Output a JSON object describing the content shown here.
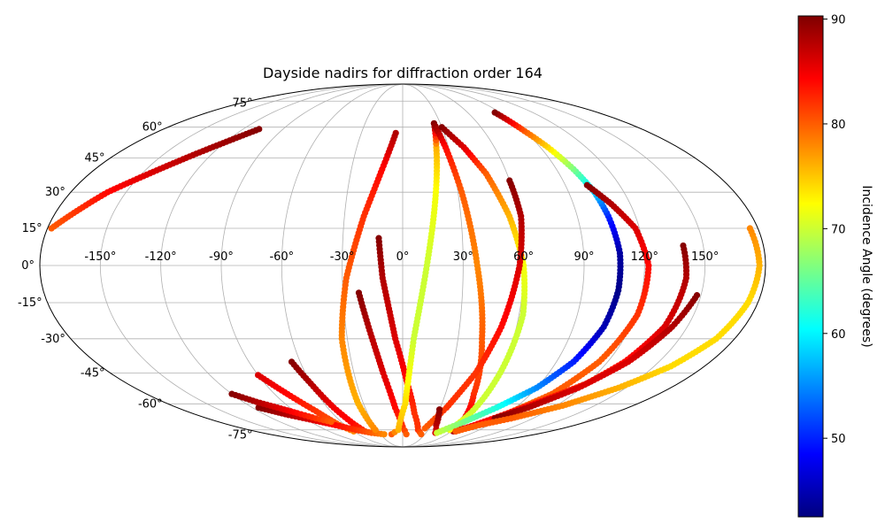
{
  "chart_data": {
    "type": "scatter",
    "projection": "mollweide",
    "title": "Dayside nadirs for diffraction order 164",
    "xlabel": "",
    "ylabel": "",
    "lon_ticks": [
      -150,
      -120,
      -90,
      -60,
      -30,
      0,
      30,
      60,
      90,
      120,
      150
    ],
    "lon_tick_labels": [
      "-150°",
      "-120°",
      "-90°",
      "-60°",
      "-30°",
      "0°",
      "30°",
      "60°",
      "90°",
      "120°",
      "150°"
    ],
    "lat_ticks": [
      -75,
      -60,
      -45,
      -30,
      -15,
      0,
      15,
      30,
      45,
      60,
      75
    ],
    "lat_tick_labels": [
      "-75°",
      "-60°",
      "-45°",
      "-30°",
      "-15°",
      "0°",
      "15°",
      "30°",
      "45°",
      "60°",
      "75°"
    ],
    "xlim": [
      -180,
      180
    ],
    "ylim": [
      -90,
      90
    ],
    "grid": true,
    "colorbar": {
      "label": "Incidence Angle (degrees)",
      "range": [
        42.5,
        90.3
      ],
      "ticks": [
        50,
        60,
        70,
        80,
        90
      ],
      "tick_labels": [
        "50",
        "60",
        "70",
        "80",
        "90"
      ],
      "colormap": "jet"
    },
    "series": [
      {
        "points": [
          [
            -178,
            15,
            80
          ],
          [
            -160,
            30,
            84
          ],
          [
            -130,
            47,
            88
          ],
          [
            -108,
            59,
            90
          ]
        ]
      },
      {
        "points": [
          [
            -90,
            -46,
            86
          ],
          [
            -80,
            -56,
            84
          ],
          [
            -72,
            -64,
            82
          ],
          [
            -66,
            -72,
            80
          ],
          [
            -60,
            -76,
            78
          ]
        ]
      },
      {
        "points": [
          [
            -65,
            -40,
            90
          ],
          [
            -60,
            -50,
            88
          ],
          [
            -55,
            -62,
            85
          ],
          [
            -50,
            -71,
            84
          ],
          [
            -46,
            -76,
            82
          ]
        ]
      },
      {
        "points": [
          [
            -115,
            -62,
            90
          ],
          [
            -100,
            -66,
            88
          ],
          [
            -85,
            -69,
            86
          ],
          [
            -70,
            -72,
            84
          ],
          [
            -55,
            -75,
            82
          ],
          [
            -40,
            -77,
            80
          ],
          [
            -25,
            -78,
            78
          ]
        ]
      },
      {
        "points": [
          [
            -120,
            -55,
            90
          ],
          [
            -110,
            -59,
            88
          ],
          [
            -100,
            -62,
            86
          ],
          [
            -90,
            -65,
            84
          ],
          [
            -80,
            -68,
            82
          ],
          [
            -70,
            -70,
            80
          ]
        ]
      },
      {
        "points": [
          [
            -32,
            -75,
            78
          ],
          [
            -34,
            -60,
            76
          ],
          [
            -33,
            -30,
            78
          ],
          [
            -28,
            -5,
            80
          ],
          [
            -20,
            20,
            82
          ],
          [
            -12,
            40,
            84
          ],
          [
            -5,
            57,
            88
          ]
        ]
      },
      {
        "points": [
          [
            -22,
            -11,
            90
          ],
          [
            -18,
            -25,
            88
          ],
          [
            -12,
            -45,
            86
          ],
          [
            -6,
            -62,
            84
          ],
          [
            0,
            -73,
            82
          ],
          [
            5,
            -78,
            80
          ]
        ]
      },
      {
        "points": [
          [
            -12,
            11,
            90
          ],
          [
            -10,
            -5,
            88
          ],
          [
            -4,
            -30,
            86
          ],
          [
            3,
            -50,
            84
          ],
          [
            10,
            -65,
            82
          ],
          [
            18,
            -75,
            82
          ],
          [
            25,
            -78,
            80
          ]
        ]
      },
      {
        "points": [
          [
            -15,
            -78,
            80
          ],
          [
            -5,
            -75,
            76
          ],
          [
            2,
            -60,
            74
          ],
          [
            6,
            -30,
            70
          ],
          [
            12,
            0,
            70
          ],
          [
            18,
            30,
            72
          ],
          [
            22,
            50,
            76
          ],
          [
            25,
            62,
            90
          ]
        ]
      },
      {
        "points": [
          [
            25,
            62,
            90
          ],
          [
            28,
            50,
            84
          ],
          [
            32,
            30,
            80
          ],
          [
            37,
            0,
            78
          ],
          [
            43,
            -30,
            80
          ],
          [
            50,
            -55,
            82
          ],
          [
            58,
            -70,
            86
          ],
          [
            62,
            -76,
            88
          ]
        ]
      },
      {
        "points": [
          [
            30,
            60,
            90
          ],
          [
            40,
            50,
            86
          ],
          [
            48,
            38,
            80
          ],
          [
            55,
            20,
            76
          ],
          [
            60,
            0,
            72
          ],
          [
            62,
            -20,
            70
          ],
          [
            60,
            -45,
            70
          ],
          [
            58,
            -65,
            70
          ],
          [
            55,
            -75,
            72
          ]
        ]
      },
      {
        "points": [
          [
            60,
            35,
            90
          ],
          [
            61,
            20,
            88
          ],
          [
            58,
            0,
            86
          ],
          [
            52,
            -25,
            84
          ],
          [
            45,
            -45,
            82
          ],
          [
            35,
            -62,
            82
          ],
          [
            25,
            -74,
            80
          ]
        ]
      },
      {
        "points": [
          [
            30,
            -63,
            90
          ],
          [
            35,
            -72,
            88
          ],
          [
            42,
            -77,
            86
          ]
        ]
      },
      {
        "points": [
          [
            44,
            -77,
            70
          ],
          [
            60,
            -70,
            66
          ],
          [
            75,
            -62,
            62
          ],
          [
            90,
            -52,
            55
          ],
          [
            100,
            -40,
            50
          ],
          [
            106,
            -25,
            45
          ],
          [
            108,
            -10,
            43
          ],
          [
            108,
            5,
            44
          ],
          [
            106,
            20,
            50
          ],
          [
            104,
            30,
            58
          ],
          [
            100,
            40,
            66
          ],
          [
            95,
            50,
            74
          ],
          [
            90,
            58,
            80
          ],
          [
            85,
            68,
            90
          ]
        ]
      },
      {
        "points": [
          [
            102,
            33,
            90
          ],
          [
            110,
            25,
            88
          ],
          [
            118,
            15,
            86
          ],
          [
            122,
            0,
            84
          ],
          [
            121,
            -20,
            82
          ],
          [
            115,
            -40,
            80
          ],
          [
            105,
            -55,
            80
          ],
          [
            90,
            -65,
            80
          ],
          [
            75,
            -72,
            80
          ]
        ]
      },
      {
        "points": [
          [
            140,
            8,
            90
          ],
          [
            141,
            -5,
            88
          ],
          [
            138,
            -25,
            86
          ],
          [
            130,
            -40,
            84
          ],
          [
            120,
            -50,
            82
          ],
          [
            105,
            -58,
            84
          ],
          [
            90,
            -65,
            84
          ],
          [
            75,
            -72,
            84
          ],
          [
            65,
            -76,
            88
          ]
        ]
      },
      {
        "points": [
          [
            148,
            -12,
            90
          ],
          [
            142,
            -25,
            88
          ],
          [
            132,
            -40,
            86
          ],
          [
            118,
            -52,
            86
          ],
          [
            100,
            -62,
            88
          ],
          [
            85,
            -68,
            90
          ]
        ]
      },
      {
        "points": [
          [
            176,
            15,
            78
          ],
          [
            177,
            0,
            76
          ],
          [
            175,
            -15,
            74
          ],
          [
            170,
            -30,
            74
          ],
          [
            160,
            -42,
            74
          ],
          [
            145,
            -52,
            76
          ],
          [
            125,
            -61,
            78
          ],
          [
            100,
            -68,
            80
          ],
          [
            80,
            -72,
            80
          ],
          [
            65,
            -76,
            80
          ]
        ]
      }
    ]
  }
}
